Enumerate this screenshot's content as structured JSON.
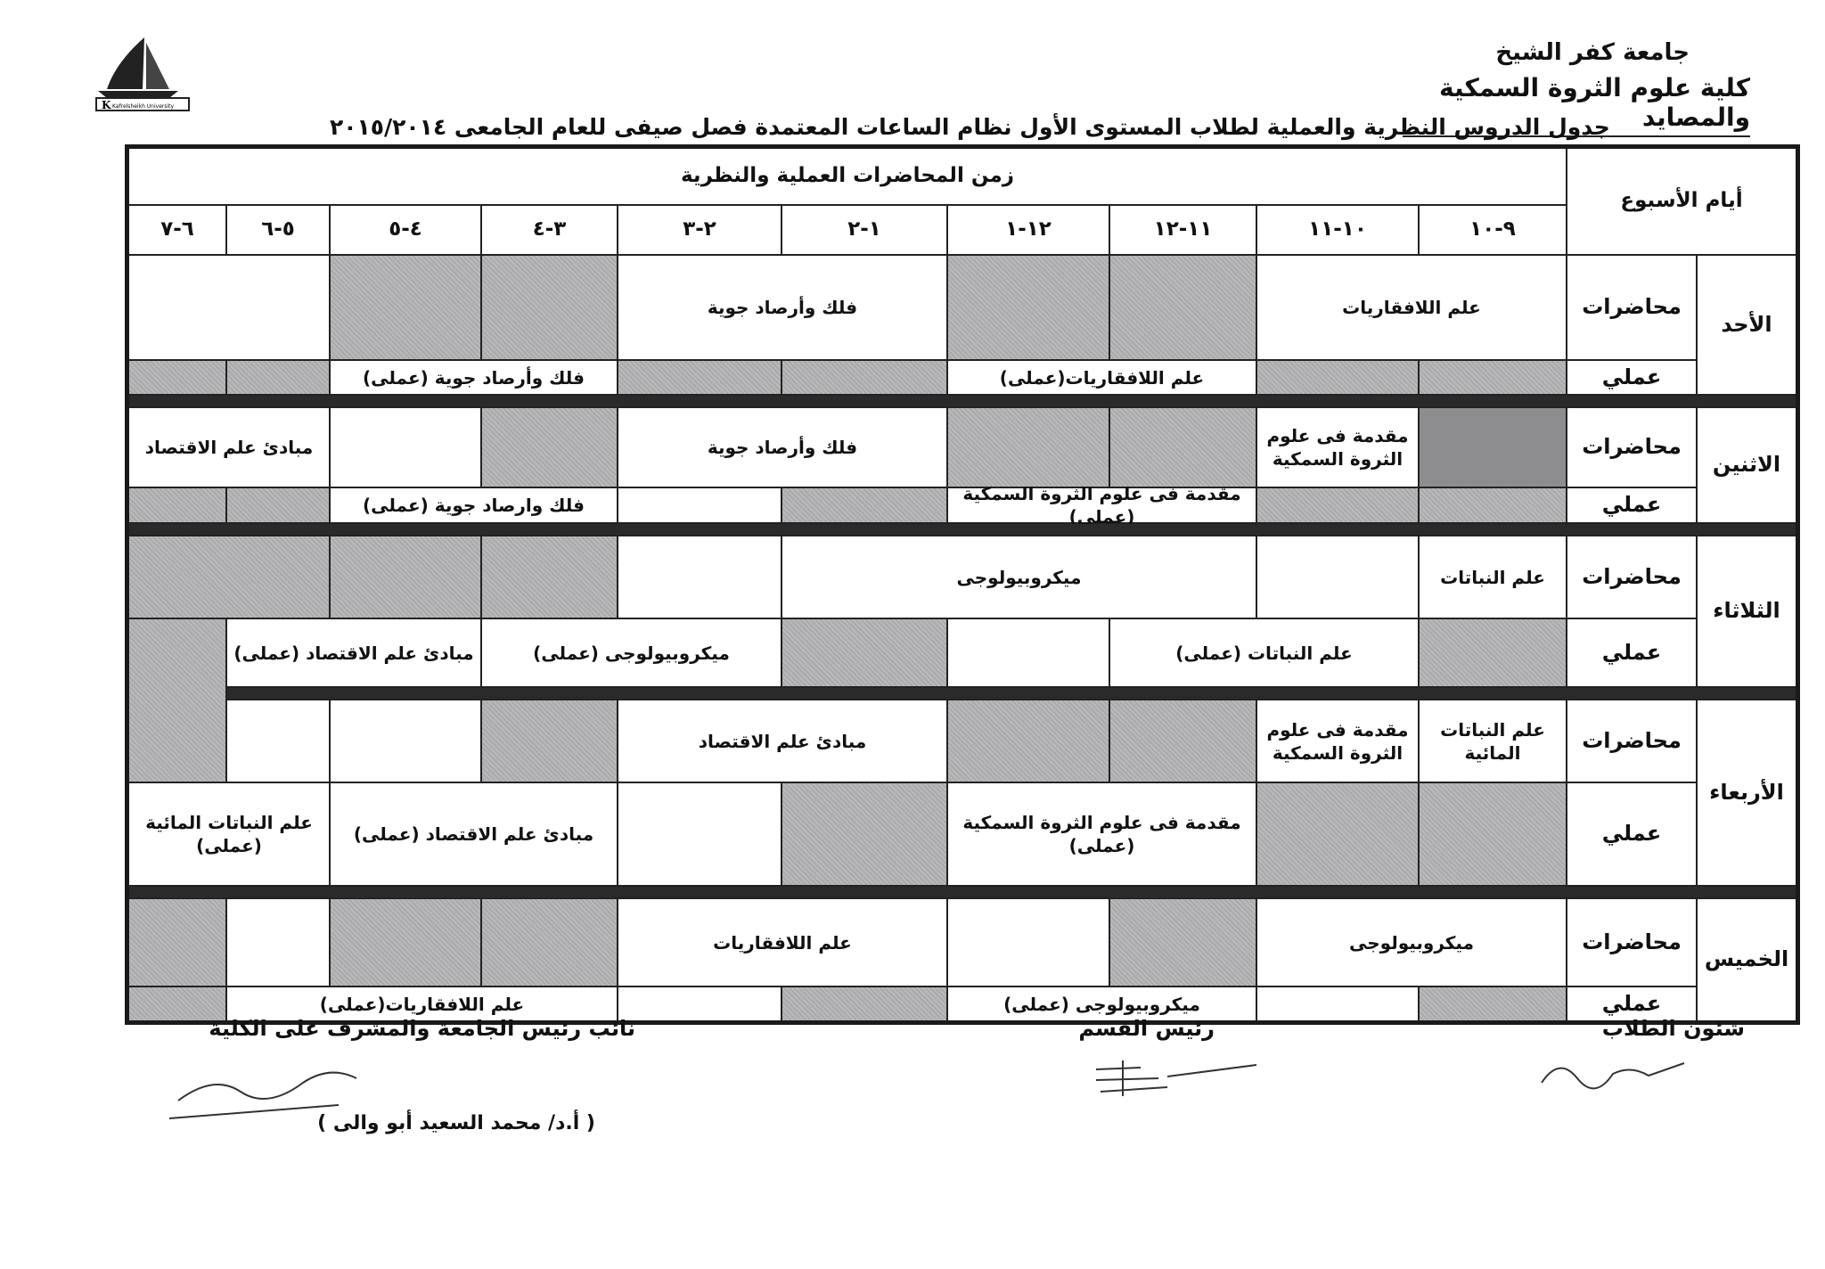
{
  "header": {
    "university": "جامعة كفر الشيخ",
    "faculty": "كلية علوم الثروة السمكية والمصايد",
    "title": "جدول الدروس النظرية والعملية لطلاب المستوى الأول نظام الساعات المعتمدة فصل صيفى  للعام الجامعى ٢٠١٥/٢٠١٤",
    "logo_text": "جامعة كفر الشيخ Kafrelsheikh University"
  },
  "table": {
    "days_header": "أيام الأسبوع",
    "time_header": "زمن المحاضرات العملية والنظرية",
    "times": [
      "٩-١٠",
      "١٠-١١",
      "١١-١٢",
      "١٢-١",
      "١-٢",
      "٢-٣",
      "٣-٤",
      "٤-٥",
      "٥-٦",
      "٦-٧"
    ],
    "lecture_label": "محاضرات",
    "practical_label": "عملي",
    "shade_color": "#b3b3b5",
    "days": [
      {
        "name": "الأحد",
        "lecture": [
          {
            "text": "علم اللافقاريات",
            "slots": 2
          },
          {
            "shaded": true
          },
          {
            "shaded": true
          },
          {
            "text": "فلك وأرصاد جوية",
            "slots": 2
          },
          {
            "shaded": true
          },
          {
            "shaded": true
          },
          {
            "text": "",
            "slots": 2
          }
        ],
        "practical": [
          {
            "shaded": true
          },
          {
            "shaded": true
          },
          {
            "text": "علم اللافقاريات(عملى)",
            "slots": 2
          },
          {
            "shaded": true
          },
          {
            "shaded": true
          },
          {
            "text": "فلك وأرصاد جوية (عملى)",
            "slots": 2
          },
          {
            "shaded": true
          },
          {
            "shaded": true
          }
        ]
      },
      {
        "name": "الاثنين",
        "lecture": [
          {
            "shaded": true,
            "dark": true
          },
          {
            "text": "مقدمة فى علوم الثروة السمكية"
          },
          {
            "shaded": true
          },
          {
            "shaded": true
          },
          {
            "text": "فلك وأرصاد جوية",
            "slots": 2
          },
          {
            "shaded": true
          },
          {
            "text": ""
          },
          {
            "text": "مبادئ علم الاقتصاد",
            "slots": 2
          }
        ],
        "practical": [
          {
            "shaded": true
          },
          {
            "shaded": true
          },
          {
            "text": "مقدمة فى علوم الثروة السمكية (عملى)",
            "slots": 2
          },
          {
            "shaded": true
          },
          {
            "text": ""
          },
          {
            "text": "فلك وارصاد جوية (عملى)",
            "slots": 2
          },
          {
            "shaded": true
          },
          {
            "shaded": true
          }
        ]
      },
      {
        "name": "الثلاثاء",
        "lecture": [
          {
            "text": "علم النباتات"
          },
          {
            "text": ""
          },
          {
            "text": "ميكروبيولوجى",
            "slots": 3
          },
          {
            "text": ""
          },
          {
            "shaded": true
          },
          {
            "shaded": true
          },
          {
            "shaded": true,
            "slots": 2
          }
        ],
        "practical": [
          {
            "shaded": true
          },
          {
            "text": "علم النباتات  (عملى)",
            "slots": 2
          },
          {
            "text": ""
          },
          {
            "shaded": true
          },
          {
            "text": "ميكروبيولوجى  (عملى)",
            "slots": 2
          },
          {
            "text": "مبادئ علم الاقتصاد (عملى)",
            "slots": 2
          },
          {
            "shaded": true,
            "extends_into_next_day": true
          }
        ]
      },
      {
        "name": "الأربعاء",
        "lecture": [
          {
            "text": "علم النباتات المائية"
          },
          {
            "text": "مقدمة فى علوم الثروة السمكية"
          },
          {
            "shaded": true
          },
          {
            "shaded": true
          },
          {
            "text": "مبادئ علم الاقتصاد",
            "slots": 2
          },
          {
            "shaded": true
          },
          {
            "text": ""
          },
          {
            "text": ""
          }
        ],
        "practical": [
          {
            "shaded": true
          },
          {
            "shaded": true
          },
          {
            "text": "مقدمة فى علوم الثروة السمكية (عملى)",
            "slots": 2
          },
          {
            "shaded": true
          },
          {
            "text": ""
          },
          {
            "text": "مبادئ علم الاقتصاد (عملى)",
            "slots": 2
          },
          {
            "text": "علم النباتات المائية (عملى)",
            "slots": 2
          }
        ]
      },
      {
        "name": "الخميس",
        "lecture": [
          {
            "text": "ميكروبيولوجى",
            "slots": 2
          },
          {
            "shaded": true
          },
          {
            "text": ""
          },
          {
            "text": "علم اللافقاريات",
            "slots": 2
          },
          {
            "shaded": true
          },
          {
            "shaded": true
          },
          {
            "text": ""
          },
          {
            "shaded": true
          }
        ],
        "practical": [
          {
            "shaded": true
          },
          {
            "text": ""
          },
          {
            "text": "ميكروبيولوجى (عملى)",
            "slots": 2
          },
          {
            "shaded": true
          },
          {
            "text": ""
          },
          {
            "text": "علم اللافقاريات(عملى)",
            "slots": 3
          },
          {
            "shaded": true
          }
        ]
      }
    ]
  },
  "footer": {
    "student_affairs": "شئون الطلاب",
    "department_head": "رئيس القسم",
    "vice_president": "نائب رئيس الجامعة والمشرف على الكلية",
    "vice_president_name": "( أ.د/ محمد السعيد أبو والى )"
  }
}
